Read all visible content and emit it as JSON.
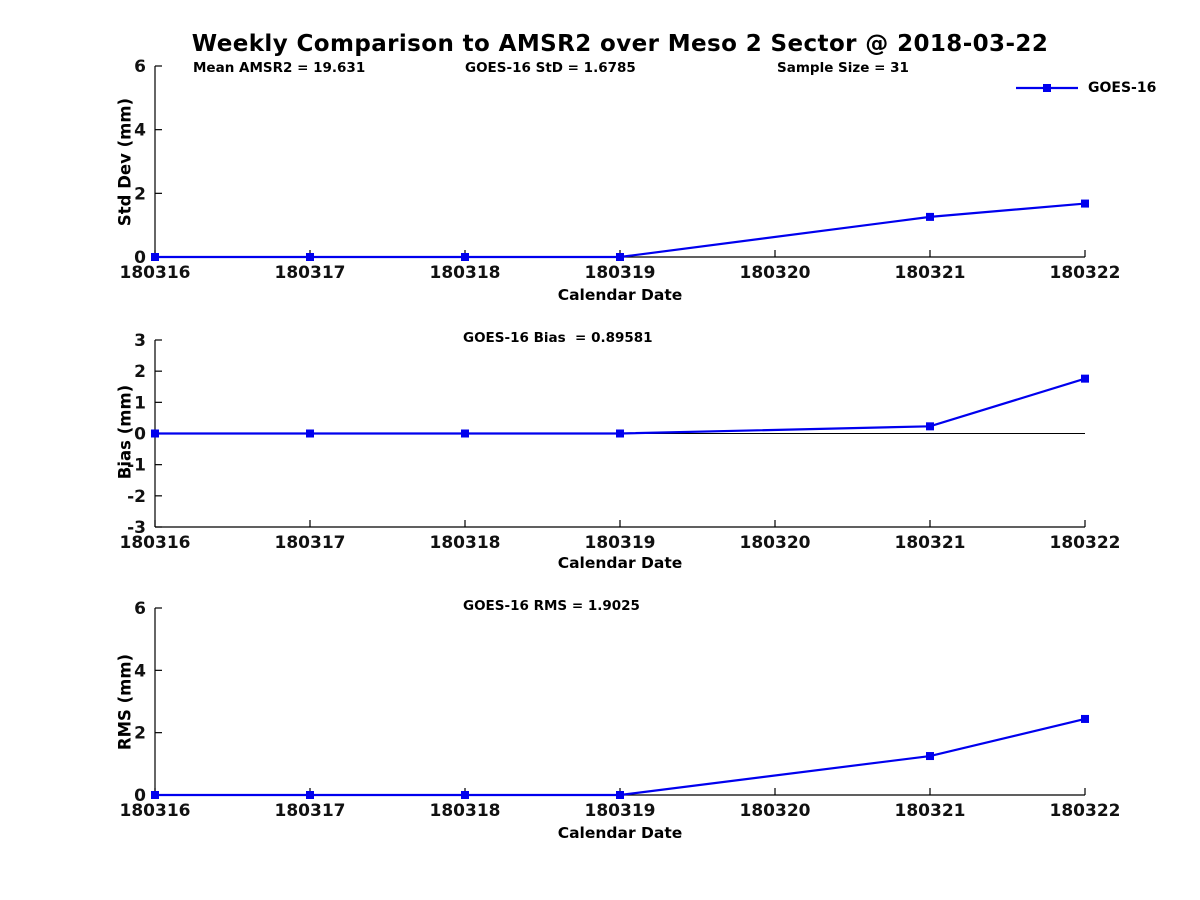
{
  "title": "Weekly Comparison to AMSR2 over Meso 2 Sector @ 2018-03-22",
  "legend": {
    "label": "GOES-16",
    "color": "#0000EE",
    "position": "top-right",
    "marker": "square"
  },
  "chart_data": [
    {
      "type": "line",
      "title": "",
      "xlabel": "Calendar Date",
      "ylabel": "Std Dev (mm)",
      "annotations": [
        "Mean AMSR2 = 19.631",
        "GOES-16 StD = 1.6785",
        "Sample Size = 31"
      ],
      "categories": [
        "180316",
        "180317",
        "180318",
        "180319",
        "180320",
        "180321",
        "180322"
      ],
      "series": [
        {
          "name": "GOES-16",
          "color": "#0000EE",
          "marker": "square",
          "values": [
            0,
            0,
            0,
            0,
            null,
            1.26,
            1.6785
          ]
        }
      ],
      "ylim": [
        0,
        6
      ],
      "yticks": [
        0,
        2,
        4,
        6
      ],
      "grid": false,
      "legend_position": "top-right",
      "note": "no data point at 180320"
    },
    {
      "type": "line",
      "title": "",
      "xlabel": "Calendar Date",
      "ylabel": "Bias (mm)",
      "annotations": [
        "GOES-16 Bias  = 0.89581"
      ],
      "categories": [
        "180316",
        "180317",
        "180318",
        "180319",
        "180320",
        "180321",
        "180322"
      ],
      "series": [
        {
          "name": "GOES-16",
          "color": "#0000EE",
          "marker": "square",
          "values": [
            0,
            0,
            0,
            0,
            null,
            0.23,
            1.76
          ]
        }
      ],
      "ylim": [
        -3,
        3
      ],
      "yticks": [
        -3,
        -2,
        -1,
        0,
        1,
        2,
        3
      ],
      "grid": false,
      "zero_line": true,
      "note": "no data point at 180320"
    },
    {
      "type": "line",
      "title": "",
      "xlabel": "Calendar Date",
      "ylabel": "RMS (mm)",
      "annotations": [
        "GOES-16 RMS = 1.9025"
      ],
      "categories": [
        "180316",
        "180317",
        "180318",
        "180319",
        "180320",
        "180321",
        "180322"
      ],
      "series": [
        {
          "name": "GOES-16",
          "color": "#0000EE",
          "marker": "square",
          "values": [
            0,
            0,
            0,
            0,
            null,
            1.25,
            2.44
          ]
        }
      ],
      "ylim": [
        0,
        6
      ],
      "yticks": [
        0,
        2,
        4,
        6
      ],
      "grid": false,
      "note": "no data point at 180320"
    }
  ]
}
